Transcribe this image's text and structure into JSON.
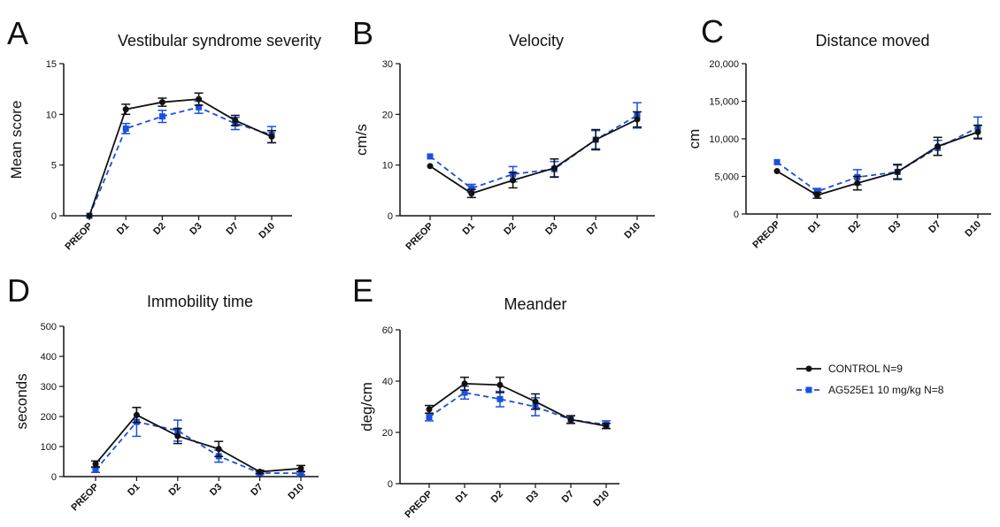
{
  "colors": {
    "control": "#111111",
    "treated": "#1a4fe0",
    "axis": "#111111"
  },
  "legend": [
    {
      "label": "CONTROL N=9",
      "series": 0
    },
    {
      "label": "AG525E1 10 mg/kg N=8",
      "series": 1
    }
  ],
  "chart_data": [
    {
      "letter": "A",
      "type": "line",
      "title": "Vestibular syndrome severity",
      "ylabel": "Mean score",
      "ylim": [
        0,
        15
      ],
      "yticks": [
        "0",
        "5",
        "10",
        "15"
      ],
      "ytick_values": [
        0,
        5,
        10,
        15
      ],
      "categories": [
        "PREOP",
        "D1",
        "D2",
        "D3",
        "D7",
        "D10"
      ],
      "series": [
        {
          "name": "CONTROL N=9",
          "values": [
            0,
            10.5,
            11.2,
            11.5,
            9.4,
            7.8
          ],
          "errors": [
            0,
            0.5,
            0.4,
            0.6,
            0.5,
            0.6
          ]
        },
        {
          "name": "AG525E1 10 mg/kg N=8",
          "values": [
            0,
            8.6,
            9.8,
            10.7,
            9.1,
            8.0
          ],
          "errors": [
            0,
            0.5,
            0.6,
            0.6,
            0.6,
            0.8
          ]
        }
      ]
    },
    {
      "letter": "B",
      "type": "line",
      "title": "Velocity",
      "ylabel": "cm/s",
      "ylim": [
        0,
        30
      ],
      "yticks": [
        "0",
        "10",
        "20",
        "30"
      ],
      "ytick_values": [
        0,
        10,
        20,
        30
      ],
      "categories": [
        "PREOP",
        "D1",
        "D2",
        "D3",
        "D7",
        "D10"
      ],
      "series": [
        {
          "name": "CONTROL N=9",
          "values": [
            9.8,
            4.4,
            7.0,
            9.4,
            15.0,
            19.0
          ],
          "errors": [
            0,
            0.8,
            1.5,
            1.8,
            2.0,
            1.5
          ]
        },
        {
          "name": "AG525E1 10 mg/kg N=8",
          "values": [
            11.7,
            5.4,
            8.2,
            9.2,
            15.0,
            19.8
          ],
          "errors": [
            0,
            0.8,
            1.5,
            1.5,
            1.8,
            2.5
          ]
        }
      ]
    },
    {
      "letter": "C",
      "type": "line",
      "title": "Distance moved",
      "ylabel": "cm",
      "ylim": [
        0,
        20000
      ],
      "yticks": [
        "0",
        "5,000",
        "10,000",
        "15,000",
        "20,000"
      ],
      "ytick_values": [
        0,
        5000,
        10000,
        15000,
        20000
      ],
      "categories": [
        "PREOP",
        "D1",
        "D2",
        "D3",
        "D7",
        "D10"
      ],
      "series": [
        {
          "name": "CONTROL N=9",
          "values": [
            5700,
            2500,
            4100,
            5600,
            9000,
            10900
          ],
          "errors": [
            0,
            400,
            900,
            1000,
            1200,
            900
          ]
        },
        {
          "name": "AG525E1 10 mg/kg N=8",
          "values": [
            6900,
            3000,
            4900,
            5600,
            8800,
            11500
          ],
          "errors": [
            0,
            400,
            1000,
            900,
            1000,
            1400
          ]
        }
      ]
    },
    {
      "letter": "D",
      "type": "line",
      "title": "Immobility time",
      "ylabel": "seconds",
      "ylim": [
        0,
        500
      ],
      "yticks": [
        "0",
        "100",
        "200",
        "300",
        "400",
        "500"
      ],
      "ytick_values": [
        0,
        100,
        200,
        300,
        400,
        500
      ],
      "categories": [
        "PREOP",
        "D1",
        "D2",
        "D3",
        "D7",
        "D10"
      ],
      "series": [
        {
          "name": "CONTROL N=9",
          "values": [
            42,
            205,
            135,
            92,
            16,
            27
          ],
          "errors": [
            10,
            25,
            25,
            25,
            5,
            10
          ]
        },
        {
          "name": "AG525E1 10 mg/kg N=8",
          "values": [
            22,
            182,
            153,
            68,
            12,
            11
          ],
          "errors": [
            8,
            48,
            35,
            20,
            5,
            5
          ]
        }
      ]
    },
    {
      "letter": "E",
      "type": "line",
      "title": "Meander",
      "ylabel": "deg/cm",
      "ylim": [
        0,
        60
      ],
      "yticks": [
        "0",
        "20",
        "40",
        "60"
      ],
      "ytick_values": [
        0,
        20,
        40,
        60
      ],
      "categories": [
        "PREOP",
        "D1",
        "D2",
        "D3",
        "D7",
        "D10"
      ],
      "series": [
        {
          "name": "CONTROL N=9",
          "values": [
            29,
            39,
            38.5,
            32,
            25,
            22.5
          ],
          "errors": [
            1.5,
            2.5,
            3,
            3,
            1.5,
            1
          ]
        },
        {
          "name": "AG525E1 10 mg/kg N=8",
          "values": [
            26,
            35.5,
            33,
            30,
            25,
            23
          ],
          "errors": [
            1.5,
            2.5,
            3,
            3.5,
            1.5,
            1.5
          ]
        }
      ]
    }
  ]
}
